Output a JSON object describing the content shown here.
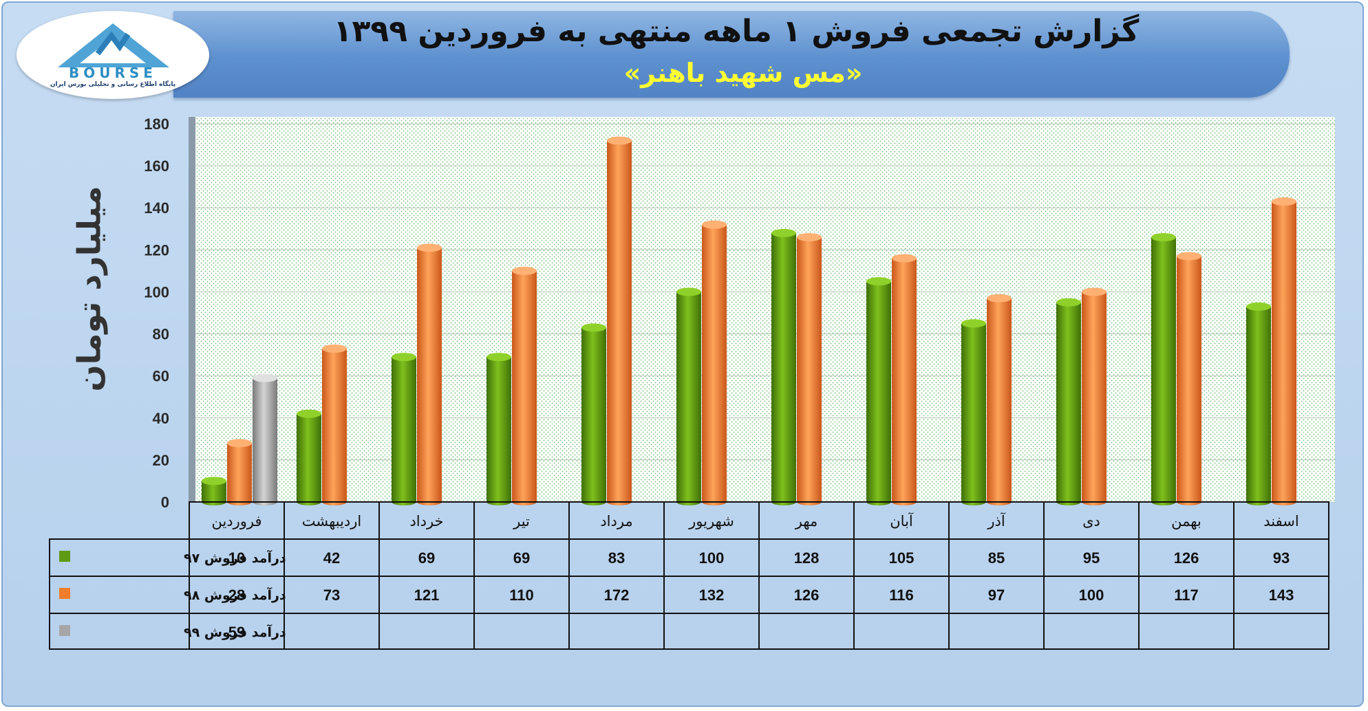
{
  "header": {
    "title": "گزارش تجمعی فروش ۱ ماهه منتهی به فروردین ۱۳۹۹",
    "subtitle": "«مس شهید باهنر»"
  },
  "logo": {
    "word": "BOURSE",
    "tagline": "پایگاه اطلاع رسانی و تحلیلی بورس ایران"
  },
  "colors": {
    "series_97": "#5e9a12",
    "series_98": "#f07c2c",
    "series_99": "#a6a6a6",
    "frame_bg": "#c6dcf3",
    "banner": "#5d90cf",
    "subtitle": "#ffff33"
  },
  "chart_data": {
    "type": "bar",
    "title": "گزارش تجمعی فروش ۱ ماهه منتهی به فروردین ۱۳۹۹",
    "subtitle": "«مس شهید باهنر»",
    "ylabel": "میلیارد تومان",
    "xlabel": "",
    "ylim": [
      0,
      180
    ],
    "yticks": [
      0,
      20,
      40,
      60,
      80,
      100,
      120,
      140,
      160,
      180
    ],
    "grid": true,
    "legend": "table-below",
    "categories": [
      "فروردین",
      "اردیبهشت",
      "خرداد",
      "تیر",
      "مرداد",
      "شهریور",
      "مهر",
      "آبان",
      "آذر",
      "دی",
      "بهمن",
      "اسفند"
    ],
    "series": [
      {
        "name": "درآمد فروش ۹۷",
        "color": "#5e9a12",
        "values": [
          10,
          42,
          69,
          69,
          83,
          100,
          128,
          105,
          85,
          95,
          126,
          93
        ]
      },
      {
        "name": "درآمد فروش ۹۸",
        "color": "#f07c2c",
        "values": [
          28,
          73,
          121,
          110,
          172,
          132,
          126,
          116,
          97,
          100,
          117,
          143
        ]
      },
      {
        "name": "درآمد فروش ۹۹",
        "color": "#a6a6a6",
        "values": [
          59,
          null,
          null,
          null,
          null,
          null,
          null,
          null,
          null,
          null,
          null,
          null
        ]
      }
    ]
  }
}
